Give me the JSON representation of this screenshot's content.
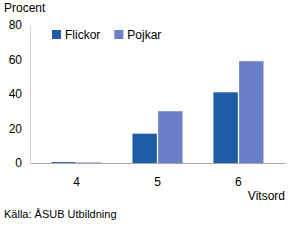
{
  "chart_data": {
    "type": "bar",
    "y_label": "Procent",
    "x_label": "Vitsord",
    "source": "Källa: ÅSUB Utbildning",
    "categories": [
      "4",
      "5",
      "6"
    ],
    "series": [
      {
        "name": "Flickor",
        "color": "#1f5ca8",
        "values": [
          0.5,
          17,
          41
        ]
      },
      {
        "name": "Pojkar",
        "color": "#6a7fc6",
        "values": [
          0.3,
          30,
          59
        ]
      }
    ],
    "ylim": [
      0,
      80
    ],
    "yticks": [
      0,
      20,
      40,
      60,
      80
    ],
    "grid": false,
    "legend": "top-left"
  }
}
